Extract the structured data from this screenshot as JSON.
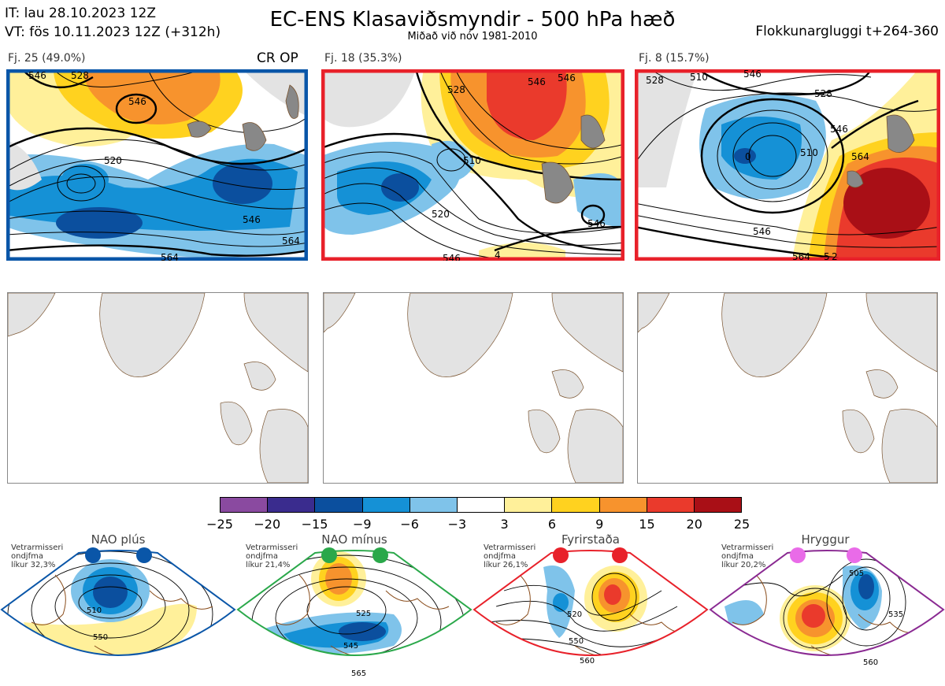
{
  "header": {
    "it_line": "IT: lau 28.10.2023 12Z",
    "vt_line": "VT: fös 10.11.2023 12Z  (+312h)",
    "title": "EC-ENS Klasaviðsmyndir - 500 hPa hæð",
    "subtitle": "Miðað við nóv 1981-2010",
    "window": "Flokkunargluggi t+264-360"
  },
  "clusters": [
    {
      "label": "Fj. 25 (49.0%)",
      "tag": "CR OP",
      "frame_color": "#0a56a8",
      "contours": [
        "546",
        "528",
        "520",
        "546",
        "546",
        "564",
        "564"
      ]
    },
    {
      "label": "Fj. 18 (35.3%)",
      "tag": "",
      "frame_color": "#e8212a",
      "contours": [
        "546",
        "528",
        "546",
        "510",
        "520",
        "546",
        "546",
        "4"
      ]
    },
    {
      "label": "Fj. 8 (15.7%)",
      "tag": "",
      "frame_color": "#e8212a",
      "contours": [
        "528",
        "510",
        "546",
        "528",
        "510",
        "546",
        "564",
        "546",
        "564",
        "5",
        "2",
        "0"
      ]
    }
  ],
  "colorbar": {
    "colors": [
      "#8a4aa0",
      "#3a2c8e",
      "#0b4f9e",
      "#1591d6",
      "#7fc3ea",
      "#ffffff",
      "#fff09a",
      "#ffd21f",
      "#f7932d",
      "#ea3a2c",
      "#a90f16"
    ],
    "ticks": [
      "−25",
      "−20",
      "−15",
      "−9",
      "−6",
      "−3",
      "3",
      "6",
      "9",
      "15",
      "20",
      "25"
    ]
  },
  "regimes": [
    {
      "name": "NAO plús",
      "prob_lines": [
        "Vetrarmisseri",
        "ondjfma",
        "líkur 32,3%"
      ],
      "frame_color": "#0a56a8",
      "dot_color": "#0a56a8",
      "contours": [
        "510",
        "550"
      ]
    },
    {
      "name": "NAO mínus",
      "prob_lines": [
        "Vetrarmisseri",
        "ondjfma",
        "líkur 21,4%"
      ],
      "frame_color": "#2aa84a",
      "dot_color": "#2aa84a",
      "contours": [
        "525",
        "545",
        "565"
      ]
    },
    {
      "name": "Fyrirstaða",
      "prob_lines": [
        "Vetrarmisseri",
        "ondjfma",
        "líkur 26,1%"
      ],
      "frame_color": "#e8212a",
      "dot_color": "#e8212a",
      "contours": [
        "520",
        "550",
        "560"
      ]
    },
    {
      "name": "Hryggur",
      "prob_lines": [
        "Vetrarmisseri",
        "ondjfma",
        "líkur 20,2%"
      ],
      "frame_color": "#8a2a92",
      "dot_color": "#e96be8",
      "contours": [
        "505",
        "535",
        "560"
      ]
    }
  ]
}
